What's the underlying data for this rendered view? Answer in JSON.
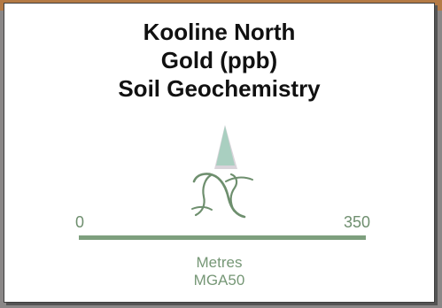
{
  "legend": {
    "title_lines": [
      "Kooline North",
      "Gold (ppb)",
      "Soil Geochemistry"
    ],
    "north_symbol_text": "N",
    "scale": {
      "min_label": "0",
      "max_label": "350",
      "units": "Metres",
      "datum": "MGA50"
    }
  },
  "colors": {
    "scale_green": "#7e9f7e",
    "arrow_green": "#a9cfc0",
    "background_gray": "#8a8787",
    "accent_orange": "#b47a45"
  },
  "icons": {
    "north_arrow": "north-arrow-icon",
    "north_symbol": "north-symbol-icon"
  }
}
